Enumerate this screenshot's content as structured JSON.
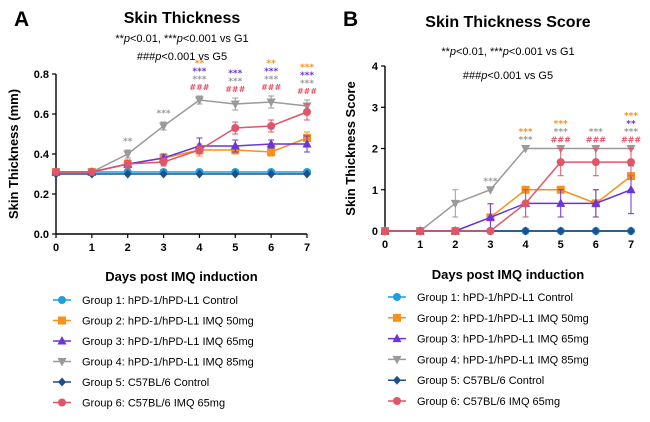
{
  "chart_data": [
    {
      "panel": "A",
      "type": "line",
      "title": "Skin Thickness",
      "annotation_line1": [
        "**",
        "p",
        "<0.01, ***",
        "p",
        "<0.001 vs G1"
      ],
      "annotation_line2": [
        "###",
        "p",
        "<0.001 vs G5"
      ],
      "xlabel": "Days post IMQ induction",
      "ylabel": "Skin Thickness (mm)",
      "x": [
        0,
        1,
        2,
        3,
        4,
        5,
        6,
        7
      ],
      "xlim": [
        0,
        7
      ],
      "ylim": [
        0,
        0.8
      ],
      "yticks": [
        0.0,
        0.2,
        0.4,
        0.6,
        0.8
      ],
      "ytick_labels": [
        "0.0",
        "0.2",
        "0.4",
        "0.6",
        "0.8"
      ],
      "series": [
        {
          "name": "Group 1: hPD-1/hPD-L1 Control",
          "color": "#1e9ee0",
          "marker": "circle",
          "values": [
            0.31,
            0.31,
            0.31,
            0.31,
            0.31,
            0.31,
            0.31,
            0.31
          ],
          "err": [
            0.005,
            0.005,
            0.005,
            0.005,
            0.005,
            0.005,
            0.005,
            0.005
          ]
        },
        {
          "name": "Group 2: hPD-1/hPD-L1 IMQ 50mg",
          "color": "#f7911e",
          "marker": "square",
          "values": [
            0.31,
            0.31,
            0.35,
            0.38,
            0.42,
            0.42,
            0.41,
            0.48
          ],
          "err": [
            0.01,
            0.01,
            0.02,
            0.02,
            0.03,
            0.02,
            0.02,
            0.03
          ]
        },
        {
          "name": "Group 3: hPD-1/hPD-L1 IMQ 65mg",
          "color": "#6a35d9",
          "marker": "triangle-up",
          "values": [
            0.31,
            0.31,
            0.35,
            0.38,
            0.44,
            0.44,
            0.45,
            0.45
          ],
          "err": [
            0.01,
            0.01,
            0.02,
            0.02,
            0.04,
            0.03,
            0.02,
            0.04
          ]
        },
        {
          "name": "Group 4: hPD-1/hPD-L1 IMQ 85mg",
          "color": "#9a9a9a",
          "marker": "triangle-down",
          "values": [
            0.31,
            0.31,
            0.4,
            0.54,
            0.67,
            0.65,
            0.66,
            0.64
          ],
          "err": [
            0.01,
            0.01,
            0.02,
            0.02,
            0.02,
            0.03,
            0.03,
            0.03
          ]
        },
        {
          "name": "Group 5: C57BL/6 Control",
          "color": "#1f4f8c",
          "marker": "diamond",
          "values": [
            0.3,
            0.3,
            0.3,
            0.3,
            0.3,
            0.3,
            0.3,
            0.3
          ],
          "err": [
            0.003,
            0.003,
            0.003,
            0.003,
            0.003,
            0.003,
            0.003,
            0.003
          ]
        },
        {
          "name": "Group 6: C57BL/6 IMQ 65mg",
          "color": "#e15569",
          "marker": "circle",
          "values": [
            0.31,
            0.31,
            0.35,
            0.36,
            0.42,
            0.53,
            0.54,
            0.61
          ],
          "err": [
            0.01,
            0.01,
            0.02,
            0.02,
            0.02,
            0.03,
            0.03,
            0.04
          ]
        }
      ],
      "significance": [
        {
          "x": 2,
          "marks": [
            {
              "text": "**",
              "color": "#9a9a9a"
            }
          ]
        },
        {
          "x": 3,
          "marks": [
            {
              "text": "***",
              "color": "#9a9a9a"
            }
          ]
        },
        {
          "x": 4,
          "marks": [
            {
              "text": "**",
              "color": "#f7911e"
            },
            {
              "text": "***",
              "color": "#6a35d9"
            },
            {
              "text": "***",
              "color": "#9a9a9a"
            },
            {
              "text": "###",
              "color": "#e15569"
            }
          ]
        },
        {
          "x": 5,
          "marks": [
            {
              "text": "***",
              "color": "#6a35d9"
            },
            {
              "text": "***",
              "color": "#9a9a9a"
            },
            {
              "text": "###",
              "color": "#e15569"
            }
          ]
        },
        {
          "x": 6,
          "marks": [
            {
              "text": "**",
              "color": "#f7911e"
            },
            {
              "text": "***",
              "color": "#6a35d9"
            },
            {
              "text": "***",
              "color": "#9a9a9a"
            },
            {
              "text": "###",
              "color": "#e15569"
            }
          ]
        },
        {
          "x": 7,
          "marks": [
            {
              "text": "***",
              "color": "#f7911e"
            },
            {
              "text": "***",
              "color": "#6a35d9"
            },
            {
              "text": "***",
              "color": "#9a9a9a"
            },
            {
              "text": "###",
              "color": "#e15569"
            }
          ]
        }
      ],
      "legend_placement": "below"
    },
    {
      "panel": "B",
      "type": "line",
      "title": "Skin Thickness Score",
      "annotation_line1": [
        "**",
        "p",
        "<0.01, ***",
        "p",
        "<0.001 vs G1"
      ],
      "annotation_line2": [
        "###",
        "p",
        "<0.001 vs G5"
      ],
      "xlabel": "Days post IMQ induction",
      "ylabel": "Skin Thickness Score",
      "x": [
        0,
        1,
        2,
        3,
        4,
        5,
        6,
        7
      ],
      "xlim": [
        0,
        7
      ],
      "ylim": [
        0,
        4
      ],
      "yticks": [
        0,
        1,
        2,
        3,
        4
      ],
      "ytick_labels": [
        "0",
        "1",
        "2",
        "3",
        "4"
      ],
      "series": [
        {
          "name": "Group 1: hPD-1/hPD-L1 Control",
          "color": "#1e9ee0",
          "marker": "circle",
          "values": [
            0,
            0,
            0,
            0,
            0,
            0,
            0,
            0
          ],
          "err": [
            0,
            0,
            0,
            0,
            0,
            0,
            0,
            0
          ]
        },
        {
          "name": "Group 2: hPD-1/hPD-L1 IMQ 50mg",
          "color": "#f7911e",
          "marker": "square",
          "values": [
            0,
            0,
            0,
            0.33,
            1.0,
            1.0,
            0.67,
            1.33
          ],
          "err": [
            0,
            0,
            0,
            0.33,
            0,
            0,
            0.33,
            0.33
          ]
        },
        {
          "name": "Group 3: hPD-1/hPD-L1 IMQ 65mg",
          "color": "#6a35d9",
          "marker": "triangle-up",
          "values": [
            0,
            0,
            0,
            0.33,
            0.67,
            0.67,
            0.67,
            1.0
          ],
          "err": [
            0,
            0,
            0,
            0.33,
            0.33,
            0.33,
            0.33,
            0.58
          ]
        },
        {
          "name": "Group 4: hPD-1/hPD-L1 IMQ 85mg",
          "color": "#9a9a9a",
          "marker": "triangle-down",
          "values": [
            0,
            0,
            0.67,
            1.0,
            2.0,
            2.0,
            2.0,
            2.0
          ],
          "err": [
            0,
            0,
            0.33,
            0,
            0,
            0,
            0,
            0
          ]
        },
        {
          "name": "Group 5: C57BL/6 Control",
          "color": "#1f4f8c",
          "marker": "diamond",
          "values": [
            0,
            0,
            0,
            0,
            0,
            0,
            0,
            0
          ],
          "err": [
            0,
            0,
            0,
            0,
            0,
            0,
            0,
            0
          ]
        },
        {
          "name": "Group 6: C57BL/6 IMQ 65mg",
          "color": "#e15569",
          "marker": "circle",
          "values": [
            0,
            0,
            0,
            0,
            0.67,
            1.67,
            1.67,
            1.67
          ],
          "err": [
            0,
            0,
            0,
            0,
            0.33,
            0.33,
            0.33,
            0.33
          ]
        }
      ],
      "significance": [
        {
          "x": 3,
          "marks": [
            {
              "text": "***",
              "color": "#9a9a9a"
            }
          ]
        },
        {
          "x": 4,
          "marks": [
            {
              "text": "***",
              "color": "#f7911e"
            },
            {
              "text": "***",
              "color": "#9a9a9a"
            }
          ]
        },
        {
          "x": 5,
          "marks": [
            {
              "text": "***",
              "color": "#f7911e"
            },
            {
              "text": "***",
              "color": "#9a9a9a"
            },
            {
              "text": "###",
              "color": "#e15569"
            }
          ]
        },
        {
          "x": 6,
          "marks": [
            {
              "text": "***",
              "color": "#9a9a9a"
            },
            {
              "text": "###",
              "color": "#e15569"
            }
          ]
        },
        {
          "x": 7,
          "marks": [
            {
              "text": "***",
              "color": "#f7911e"
            },
            {
              "text": "**",
              "color": "#6a35d9"
            },
            {
              "text": "***",
              "color": "#9a9a9a"
            },
            {
              "text": "###",
              "color": "#e15569"
            }
          ]
        }
      ],
      "legend_placement": "below"
    }
  ]
}
